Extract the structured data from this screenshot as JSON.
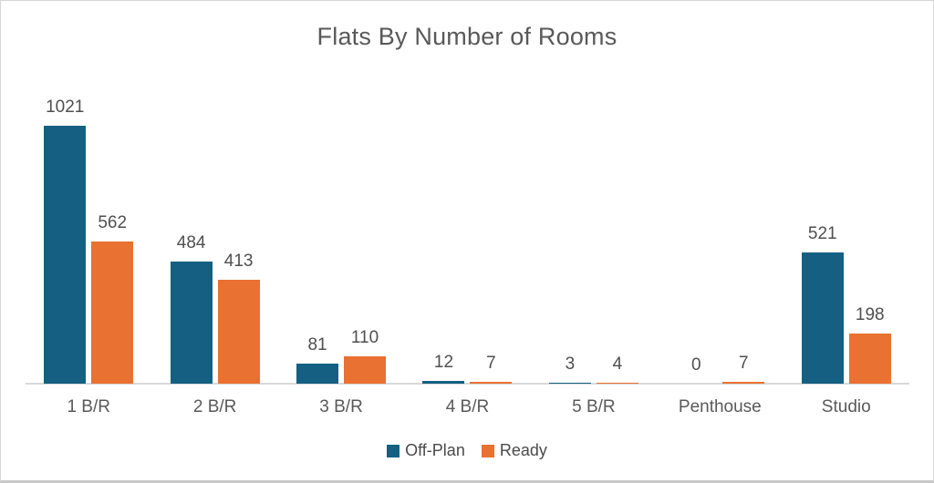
{
  "chart_data": {
    "type": "bar",
    "title": "Flats By Number of Rooms",
    "categories": [
      "1 B/R",
      "2 B/R",
      "3 B/R",
      "4 B/R",
      "5 B/R",
      "Penthouse",
      "Studio"
    ],
    "series": [
      {
        "name": "Off-Plan",
        "color": "#156082",
        "values": [
          1021,
          484,
          81,
          12,
          3,
          0,
          521
        ]
      },
      {
        "name": "Ready",
        "color": "#E97132",
        "values": [
          562,
          413,
          110,
          7,
          4,
          7,
          198
        ]
      }
    ],
    "xlabel": "",
    "ylabel": "",
    "ylim": [
      0,
      1100
    ],
    "grid": false,
    "y_axis_visible": false,
    "data_labels": true,
    "legend_position": "bottom"
  },
  "style_colors": {
    "title_text": "#595959",
    "label_text": "#4f4f4f",
    "axis_line": "#d9d9d9"
  }
}
